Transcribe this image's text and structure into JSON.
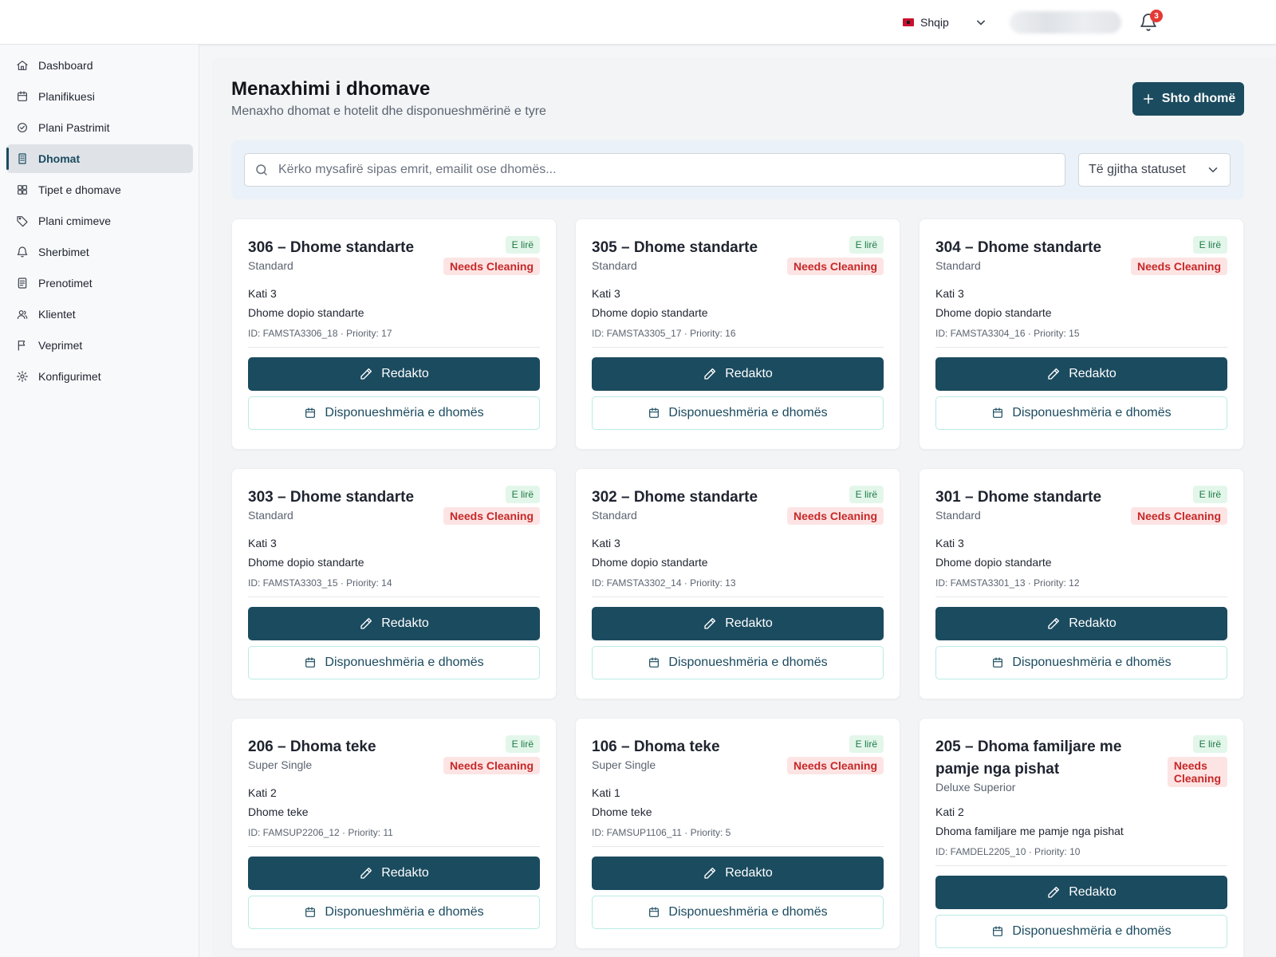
{
  "header": {
    "language": "Shqip",
    "notifications_count": "3",
    "icons": [
      "flag-albania-icon",
      "chevron-down-icon",
      "bell-icon"
    ]
  },
  "sidebar": {
    "items": [
      {
        "label": "Dashboard",
        "icon": "home-icon"
      },
      {
        "label": "Planifikuesi",
        "icon": "calendar-icon"
      },
      {
        "label": "Plani Pastrimit",
        "icon": "check-circle-icon"
      },
      {
        "label": "Dhomat",
        "icon": "building-icon",
        "active": true
      },
      {
        "label": "Tipet e dhomave",
        "icon": "grid-icon"
      },
      {
        "label": "Plani cmimeve",
        "icon": "tag-icon"
      },
      {
        "label": "Sherbimet",
        "icon": "bell-icon"
      },
      {
        "label": "Prenotimet",
        "icon": "list-icon"
      },
      {
        "label": "Klientet",
        "icon": "users-icon"
      },
      {
        "label": "Veprimet",
        "icon": "flag-icon"
      },
      {
        "label": "Konfigurimet",
        "icon": "gear-icon"
      }
    ]
  },
  "main": {
    "title": "Menaxhimi i dhomave",
    "subtitle": "Menaxho dhomat e hotelit dhe disponueshmërinë e tyre",
    "add_button": "Shto dhomë",
    "search_placeholder": "Kërko mysafirë sipas emrit, emailit ose dhomës...",
    "status_filter": "Të gjitha statuset",
    "edit_label": "Redakto",
    "availability_label": "Disponueshmëria e dhomës",
    "accent_color": "#1b4b5f",
    "rooms": [
      {
        "title": "306 – Dhome standarte",
        "type": "Standard",
        "status": "E lirë",
        "cleaning": "Needs Cleaning",
        "floor": "Kati 3",
        "description": "Dhome dopio standarte",
        "meta": "ID: FAMSTA3306_18 · Priority: 17"
      },
      {
        "title": "305 – Dhome standarte",
        "type": "Standard",
        "status": "E lirë",
        "cleaning": "Needs Cleaning",
        "floor": "Kati 3",
        "description": "Dhome dopio standarte",
        "meta": "ID: FAMSTA3305_17 · Priority: 16"
      },
      {
        "title": "304 – Dhome standarte",
        "type": "Standard",
        "status": "E lirë",
        "cleaning": "Needs Cleaning",
        "floor": "Kati 3",
        "description": "Dhome dopio standarte",
        "meta": "ID: FAMSTA3304_16 · Priority: 15"
      },
      {
        "title": "303 – Dhome standarte",
        "type": "Standard",
        "status": "E lirë",
        "cleaning": "Needs Cleaning",
        "floor": "Kati 3",
        "description": "Dhome dopio standarte",
        "meta": "ID: FAMSTA3303_15 · Priority: 14"
      },
      {
        "title": "302 – Dhome standarte",
        "type": "Standard",
        "status": "E lirë",
        "cleaning": "Needs Cleaning",
        "floor": "Kati 3",
        "description": "Dhome dopio standarte",
        "meta": "ID: FAMSTA3302_14 · Priority: 13"
      },
      {
        "title": "301 – Dhome standarte",
        "type": "Standard",
        "status": "E lirë",
        "cleaning": "Needs Cleaning",
        "floor": "Kati 3",
        "description": "Dhome dopio standarte",
        "meta": "ID: FAMSTA3301_13 · Priority: 12"
      },
      {
        "title": "206 – Dhoma teke",
        "type": "Super Single",
        "status": "E lirë",
        "cleaning": "Needs Cleaning",
        "floor": "Kati 2",
        "description": "Dhome teke",
        "meta": "ID: FAMSUP2206_12 · Priority: 11"
      },
      {
        "title": "106 – Dhoma teke",
        "type": "Super Single",
        "status": "E lirë",
        "cleaning": "Needs Cleaning",
        "floor": "Kati 1",
        "description": "Dhome teke",
        "meta": "ID: FAMSUP1106_11 · Priority: 5"
      },
      {
        "title": "205 – Dhoma familjare me pamje nga pishat",
        "title_lines": [
          "205 – Dhoma familjare me",
          "pamje nga pishat"
        ],
        "type": "Deluxe Superior",
        "status": "E lirë",
        "cleaning": "Needs Cleaning",
        "cleaning_lines": [
          "Needs",
          "Cleaning"
        ],
        "floor": "Kati 2",
        "description": "Dhoma familjare me pamje nga pishat",
        "meta": "ID: FAMDEL2205_10 · Priority: 10"
      }
    ]
  }
}
